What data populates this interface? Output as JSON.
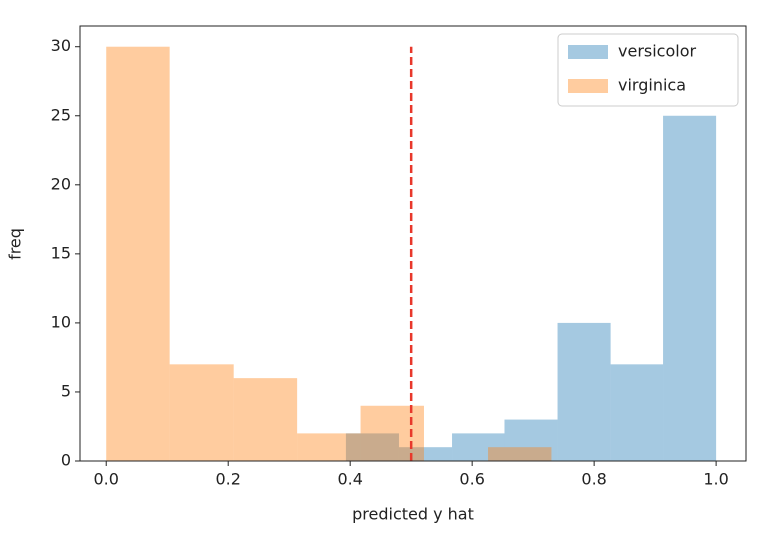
{
  "chart_data": {
    "type": "histogram",
    "xlabel": "predicted y hat",
    "ylabel": "freq",
    "series": [
      {
        "name": "versicolor",
        "color": "#1f77b4",
        "opacity": 0.4,
        "bins": [
          0.393,
          0.48,
          0.567,
          0.653,
          0.74,
          0.827,
          0.913,
          1.0
        ],
        "values": [
          2,
          1,
          2,
          3,
          10,
          7,
          25
        ]
      },
      {
        "name": "virginica",
        "color": "#ff7f0e",
        "opacity": 0.4,
        "bins": [
          0.0,
          0.104,
          0.209,
          0.313,
          0.417,
          0.521,
          0.626,
          0.73
        ],
        "values": [
          30,
          7,
          6,
          2,
          4,
          0,
          1
        ]
      }
    ],
    "vline": {
      "x": 0.5,
      "y": [
        0,
        30
      ],
      "color": "#e8382b"
    },
    "xlim": [
      -0.043,
      1.049
    ],
    "ylim": [
      0,
      31.5
    ],
    "xticks": [
      {
        "value": 0.0,
        "label": "0.0"
      },
      0.2,
      0.4,
      0.6,
      0.8,
      {
        "value": 1.0,
        "label": "1.0"
      }
    ],
    "yticks": [
      0,
      5,
      10,
      15,
      20,
      25,
      30
    ],
    "legend": "upper right"
  }
}
